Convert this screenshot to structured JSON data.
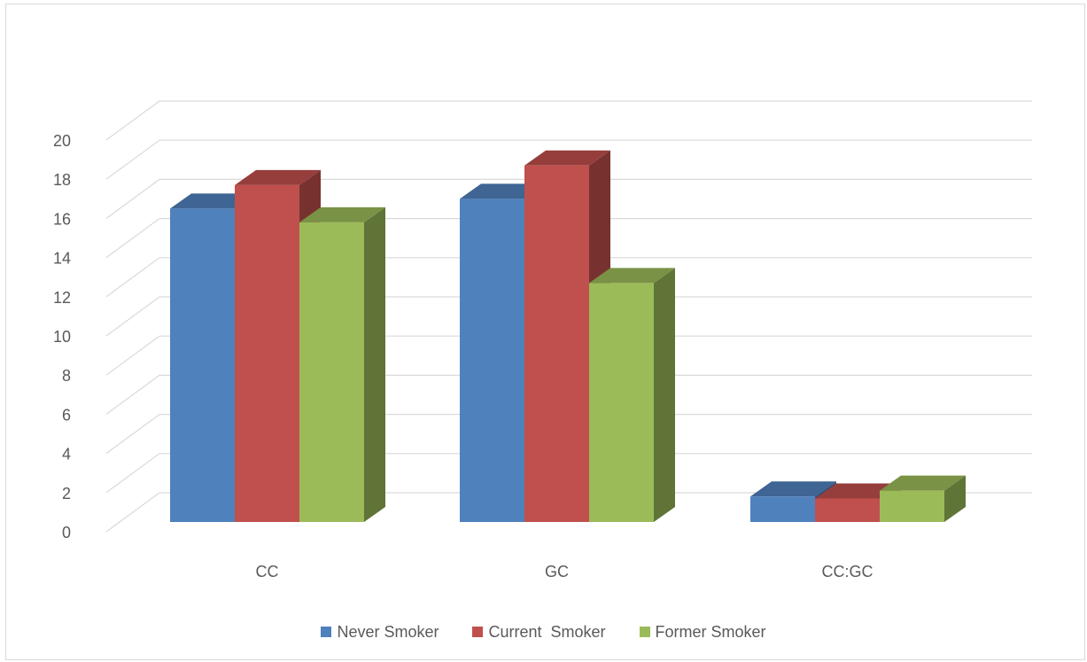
{
  "chart_data": {
    "type": "bar",
    "title": "",
    "xlabel": "",
    "ylabel": "",
    "ylim": [
      0,
      20
    ],
    "yticks": [
      0,
      2,
      4,
      6,
      8,
      10,
      12,
      14,
      16,
      18,
      20
    ],
    "categories": [
      "CC",
      "GC",
      "CC:GC"
    ],
    "series": [
      {
        "name": "Never Smoker",
        "values": [
          16.0,
          16.5,
          1.3
        ],
        "color": "#4f81bd"
      },
      {
        "name": "Current  Smoker",
        "values": [
          17.2,
          18.2,
          1.2
        ],
        "color": "#c0504d"
      },
      {
        "name": "Former Smoker",
        "values": [
          15.3,
          12.2,
          1.6
        ],
        "color": "#9bbb59"
      }
    ],
    "grid": true,
    "legend_position": "bottom",
    "style": "3d-clustered-column"
  }
}
